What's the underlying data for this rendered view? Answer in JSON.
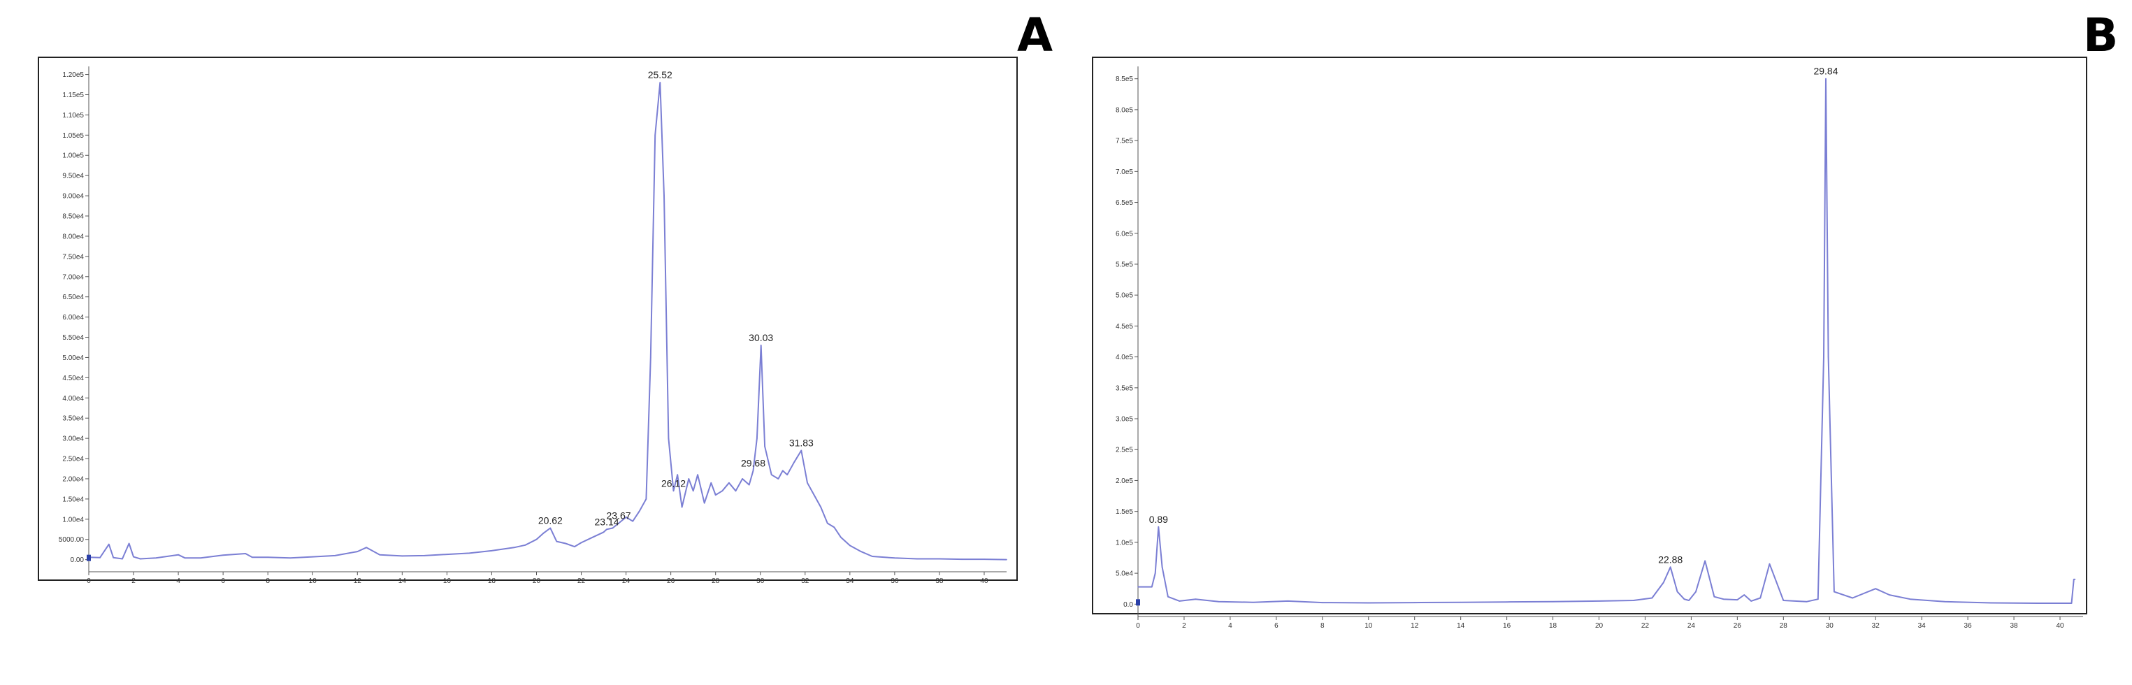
{
  "chart_data": [
    {
      "panel": "A",
      "type": "line",
      "title": "",
      "xlabel": "",
      "ylabel": "",
      "xlim": [
        0,
        41
      ],
      "ylim": [
        -3000,
        122000
      ],
      "grid": false,
      "line_color": "#7b7fd4",
      "x_ticks": [
        0,
        2,
        4,
        6,
        8,
        10,
        12,
        14,
        16,
        18,
        20,
        22,
        24,
        26,
        28,
        30,
        32,
        34,
        36,
        38,
        40
      ],
      "y_ticks": [
        {
          "value": 0,
          "label": "0.00"
        },
        {
          "value": 5000,
          "label": "5000.00"
        },
        {
          "value": 10000,
          "label": "1.00e4"
        },
        {
          "value": 15000,
          "label": "1.50e4"
        },
        {
          "value": 20000,
          "label": "2.00e4"
        },
        {
          "value": 25000,
          "label": "2.50e4"
        },
        {
          "value": 30000,
          "label": "3.00e4"
        },
        {
          "value": 35000,
          "label": "3.50e4"
        },
        {
          "value": 40000,
          "label": "4.00e4"
        },
        {
          "value": 45000,
          "label": "4.50e4"
        },
        {
          "value": 50000,
          "label": "5.00e4"
        },
        {
          "value": 55000,
          "label": "5.50e4"
        },
        {
          "value": 60000,
          "label": "6.00e4"
        },
        {
          "value": 65000,
          "label": "6.50e4"
        },
        {
          "value": 70000,
          "label": "7.00e4"
        },
        {
          "value": 75000,
          "label": "7.50e4"
        },
        {
          "value": 80000,
          "label": "8.00e4"
        },
        {
          "value": 85000,
          "label": "8.50e4"
        },
        {
          "value": 90000,
          "label": "9.00e4"
        },
        {
          "value": 95000,
          "label": "9.50e4"
        },
        {
          "value": 100000,
          "label": "1.00e5"
        },
        {
          "value": 105000,
          "label": "1.05e5"
        },
        {
          "value": 110000,
          "label": "1.10e5"
        },
        {
          "value": 115000,
          "label": "1.15e5"
        },
        {
          "value": 120000,
          "label": "1.20e5"
        }
      ],
      "x": [
        0,
        0.5,
        0.9,
        1.1,
        1.5,
        1.8,
        2.0,
        2.3,
        3.0,
        4.0,
        4.3,
        5.0,
        6.0,
        7.0,
        7.3,
        8.0,
        9.0,
        10.0,
        11.0,
        12.0,
        12.4,
        13.0,
        14.0,
        15.0,
        16.0,
        17.0,
        18.0,
        19.0,
        19.5,
        20.0,
        20.3,
        20.62,
        20.9,
        21.3,
        21.7,
        22.0,
        22.5,
        23.0,
        23.14,
        23.4,
        23.67,
        24.0,
        24.3,
        24.6,
        24.9,
        25.1,
        25.3,
        25.52,
        25.7,
        25.9,
        26.12,
        26.3,
        26.5,
        26.8,
        27.0,
        27.2,
        27.5,
        27.8,
        28.0,
        28.3,
        28.6,
        28.9,
        29.2,
        29.5,
        29.68,
        29.85,
        30.03,
        30.2,
        30.5,
        30.8,
        31.0,
        31.2,
        31.5,
        31.83,
        32.1,
        32.4,
        32.7,
        33.0,
        33.3,
        33.6,
        34.0,
        34.5,
        35.0,
        36.0,
        37.0,
        38.0,
        39.0,
        40.0,
        41.0
      ],
      "y": [
        600,
        500,
        3800,
        500,
        200,
        4000,
        700,
        200,
        400,
        1200,
        400,
        400,
        1100,
        1500,
        600,
        600,
        400,
        700,
        1000,
        2000,
        3000,
        1200,
        900,
        1000,
        1300,
        1600,
        2200,
        3000,
        3600,
        5000,
        6500,
        7800,
        4500,
        4000,
        3200,
        4200,
        5500,
        6800,
        7500,
        7800,
        9000,
        10500,
        9500,
        12000,
        15000,
        50000,
        105000,
        118000,
        90000,
        30000,
        17000,
        21000,
        13000,
        20000,
        17000,
        21000,
        14000,
        19000,
        16000,
        17000,
        19000,
        17000,
        20000,
        18500,
        22000,
        30000,
        53000,
        28000,
        21000,
        20000,
        22000,
        21000,
        24000,
        27000,
        19000,
        16000,
        13000,
        9000,
        8000,
        5500,
        3500,
        2000,
        800,
        400,
        200,
        200,
        100,
        100,
        0
      ],
      "peak_labels": [
        {
          "x": 20.62,
          "y": 7800,
          "label": "20.62"
        },
        {
          "x": 23.14,
          "y": 7500,
          "label": "23.14"
        },
        {
          "x": 23.67,
          "y": 9000,
          "label": "23.67"
        },
        {
          "x": 25.52,
          "y": 118000,
          "label": "25.52"
        },
        {
          "x": 26.12,
          "y": 17000,
          "label": "26.12"
        },
        {
          "x": 29.68,
          "y": 22000,
          "label": "29.68"
        },
        {
          "x": 30.03,
          "y": 53000,
          "label": "30.03"
        },
        {
          "x": 31.83,
          "y": 27000,
          "label": "31.83"
        }
      ]
    },
    {
      "panel": "B",
      "type": "line",
      "title": "",
      "xlabel": "",
      "ylabel": "",
      "xlim": [
        0,
        41
      ],
      "ylim": [
        -20000,
        870000
      ],
      "grid": false,
      "line_color": "#7b7fd4",
      "x_ticks": [
        0,
        2,
        4,
        6,
        8,
        10,
        12,
        14,
        16,
        18,
        20,
        22,
        24,
        26,
        28,
        30,
        32,
        34,
        36,
        38,
        40
      ],
      "y_ticks": [
        {
          "value": 0,
          "label": "0.0"
        },
        {
          "value": 50000,
          "label": "5.0e4"
        },
        {
          "value": 100000,
          "label": "1.0e5"
        },
        {
          "value": 150000,
          "label": "1.5e5"
        },
        {
          "value": 200000,
          "label": "2.0e5"
        },
        {
          "value": 250000,
          "label": "2.5e5"
        },
        {
          "value": 300000,
          "label": "3.0e5"
        },
        {
          "value": 350000,
          "label": "3.5e5"
        },
        {
          "value": 400000,
          "label": "4.0e5"
        },
        {
          "value": 450000,
          "label": "4.5e5"
        },
        {
          "value": 500000,
          "label": "5.0e5"
        },
        {
          "value": 550000,
          "label": "5.5e5"
        },
        {
          "value": 600000,
          "label": "6.0e5"
        },
        {
          "value": 650000,
          "label": "6.5e5"
        },
        {
          "value": 700000,
          "label": "7.0e5"
        },
        {
          "value": 750000,
          "label": "7.5e5"
        },
        {
          "value": 800000,
          "label": "8.0e5"
        },
        {
          "value": 850000,
          "label": "8.5e5"
        }
      ],
      "x": [
        0,
        0.6,
        0.75,
        0.89,
        1.05,
        1.3,
        1.8,
        2.5,
        3.5,
        5.0,
        6.5,
        8.0,
        10.0,
        12.0,
        14.0,
        16.0,
        18.0,
        20.0,
        21.5,
        22.3,
        22.8,
        23.1,
        23.4,
        23.7,
        23.9,
        24.2,
        24.6,
        25.0,
        25.4,
        26.0,
        26.3,
        26.6,
        27.0,
        27.4,
        28.0,
        29.0,
        29.5,
        29.75,
        29.84,
        29.95,
        30.2,
        31.0,
        32.0,
        32.6,
        33.5,
        35.0,
        37.0,
        39.0,
        40.5,
        40.6,
        40.65
      ],
      "y": [
        28000,
        28000,
        50000,
        125000,
        60000,
        12000,
        5000,
        8000,
        4000,
        3000,
        5000,
        2500,
        2000,
        2500,
        3000,
        3500,
        4000,
        5000,
        6000,
        10000,
        35000,
        60000,
        20000,
        8000,
        6000,
        20000,
        70000,
        12000,
        8000,
        7000,
        15000,
        5000,
        10000,
        65000,
        6000,
        4000,
        8000,
        400000,
        850000,
        400000,
        20000,
        10000,
        25000,
        15000,
        8000,
        4000,
        2000,
        1500,
        1500,
        40000,
        40000
      ],
      "peak_labels": [
        {
          "x": 0.89,
          "y": 125000,
          "label": "0.89"
        },
        {
          "x": 23.1,
          "y": 60000,
          "label": "22.88"
        },
        {
          "x": 29.84,
          "y": 850000,
          "label": "29.84"
        }
      ]
    }
  ]
}
